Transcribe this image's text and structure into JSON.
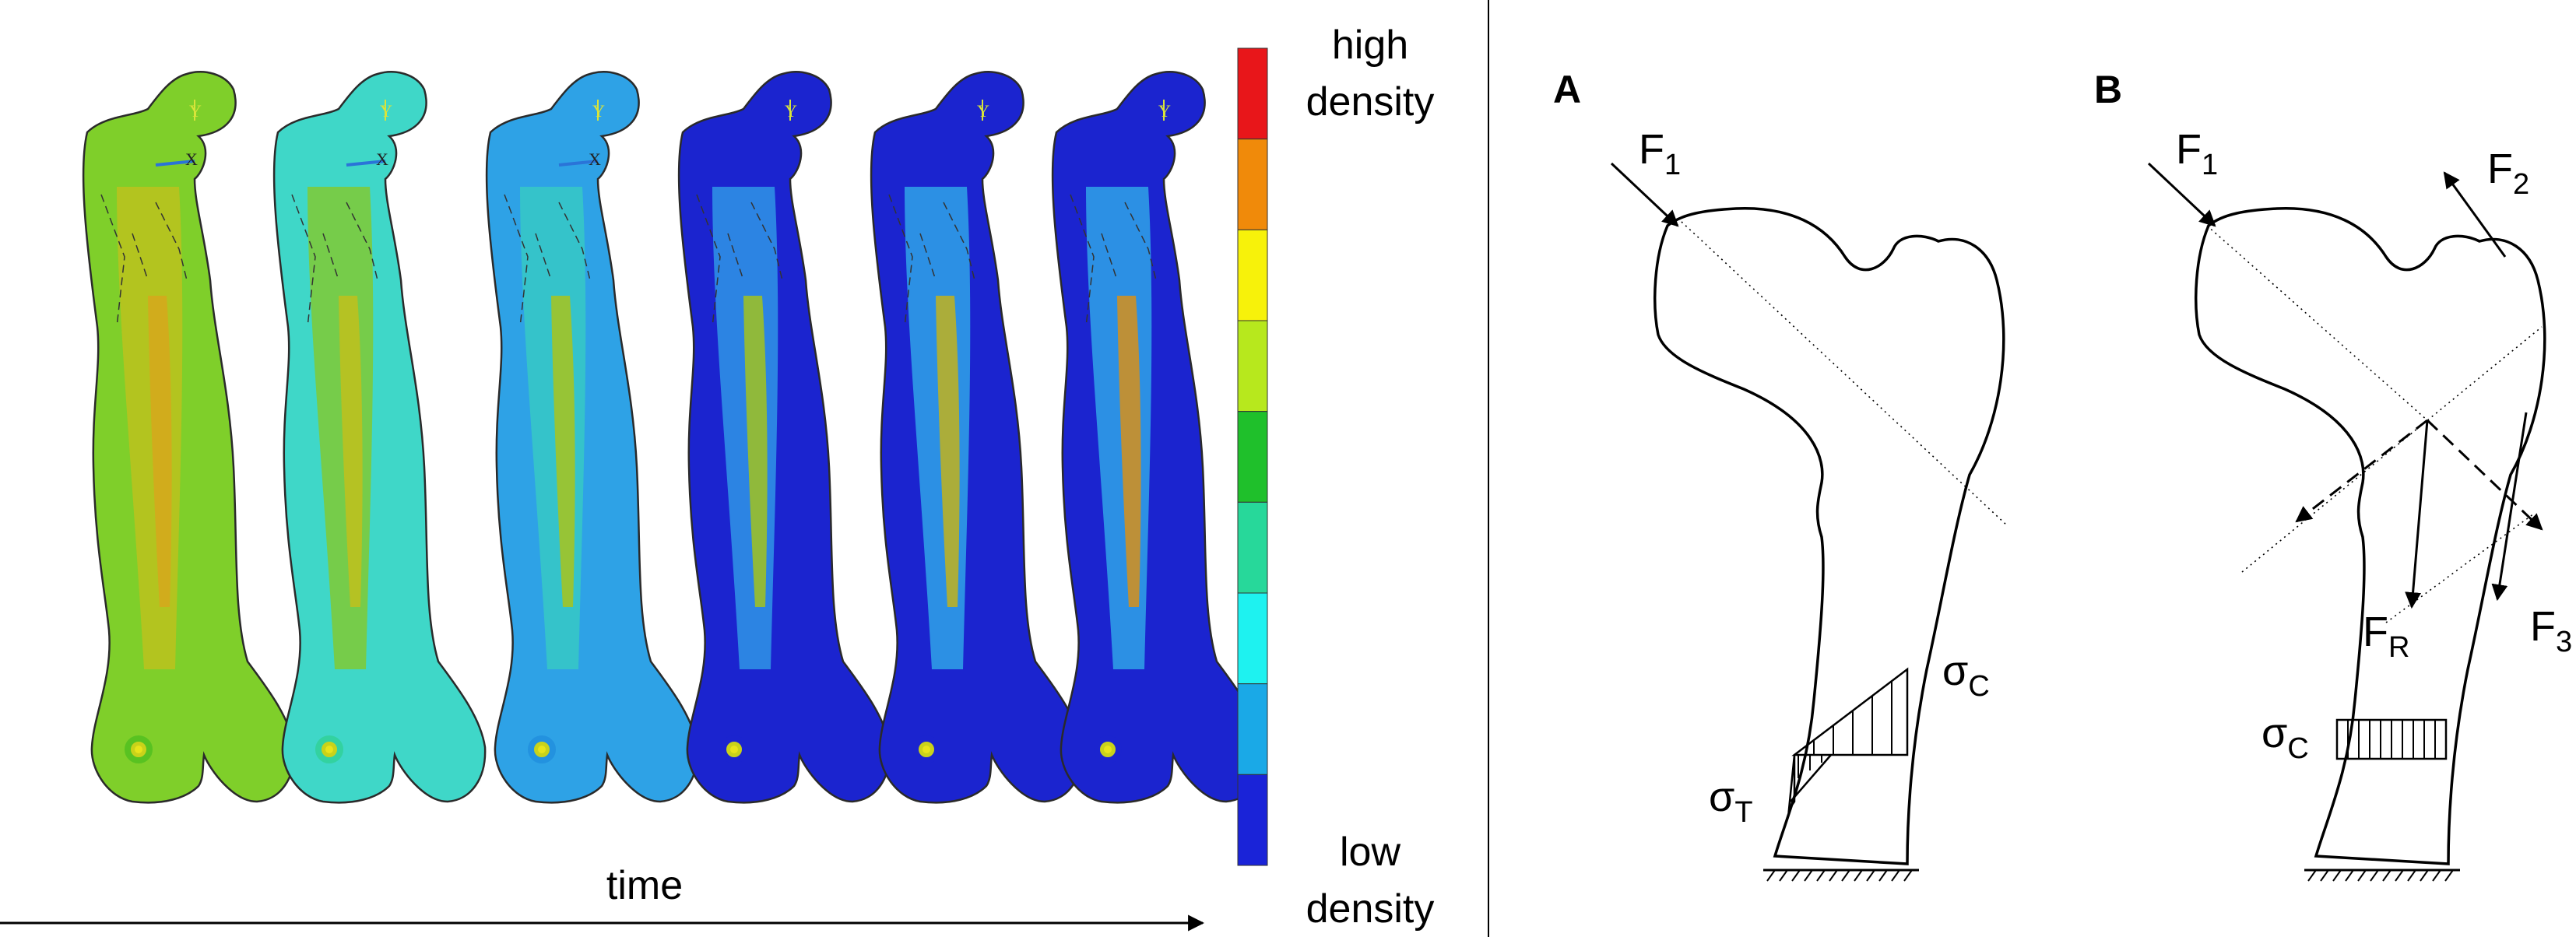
{
  "colorbar": {
    "top_label_line1": "high",
    "top_label_line2": "density",
    "bottom_label_line1": "low",
    "bottom_label_line2": "density",
    "colors": [
      "#e8161a",
      "#f08a0a",
      "#f7f20a",
      "#b7e81d",
      "#1fc02b",
      "#27d89a",
      "#1ef2f0",
      "#1aa9e7",
      "#1a23d8"
    ]
  },
  "time_axis": {
    "label": "time"
  },
  "femur_frames": [
    {
      "marker": "Y",
      "axis": "X"
    },
    {
      "marker": "Y",
      "axis": "X"
    },
    {
      "marker": "Y",
      "axis": "X"
    },
    {
      "marker": "Y",
      "axis": ""
    },
    {
      "marker": "Y",
      "axis": ""
    },
    {
      "marker": "Y",
      "axis": ""
    }
  ],
  "panel_a": {
    "label": "A",
    "force": "F",
    "force_sub": "1",
    "sigma_c": "σ",
    "sigma_c_sub": "C",
    "sigma_t": "σ",
    "sigma_t_sub": "T"
  },
  "panel_b": {
    "label": "B",
    "f1": "F",
    "f1_sub": "1",
    "f2": "F",
    "f2_sub": "2",
    "f3": "F",
    "f3_sub": "3",
    "fr": "F",
    "fr_sub": "R",
    "sigma_c": "σ",
    "sigma_c_sub": "C"
  }
}
